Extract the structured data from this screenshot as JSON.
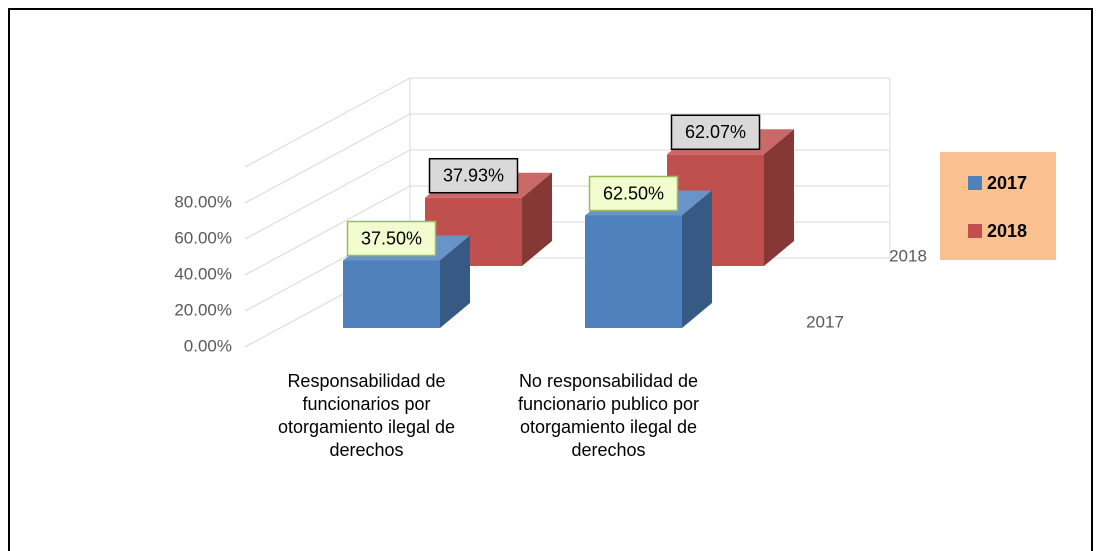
{
  "chart_data": {
    "type": "bar3d",
    "categories": [
      "Responsabilidad de funcionarios por otorgamiento ilegal de derechos",
      "No responsabilidad de funcionario publico por otorgamiento ilegal de derechos"
    ],
    "series": [
      {
        "name": "2017",
        "color": "#4f81bd",
        "values": [
          37.5,
          62.5
        ],
        "value_labels": [
          "37.50%",
          "62.50%"
        ]
      },
      {
        "name": "2018",
        "color": "#c0504d",
        "values": [
          37.93,
          62.07
        ],
        "value_labels": [
          "37.93%",
          "62.07%"
        ]
      }
    ],
    "ylim": [
      0,
      100
    ],
    "yticks": [
      {
        "value": 0,
        "label": "0.00%"
      },
      {
        "value": 20,
        "label": "20.00%"
      },
      {
        "value": 40,
        "label": "40.00%"
      },
      {
        "value": 60,
        "label": "60.00%"
      },
      {
        "value": 80,
        "label": "80.00%"
      }
    ],
    "grid": true,
    "legend": "right"
  }
}
